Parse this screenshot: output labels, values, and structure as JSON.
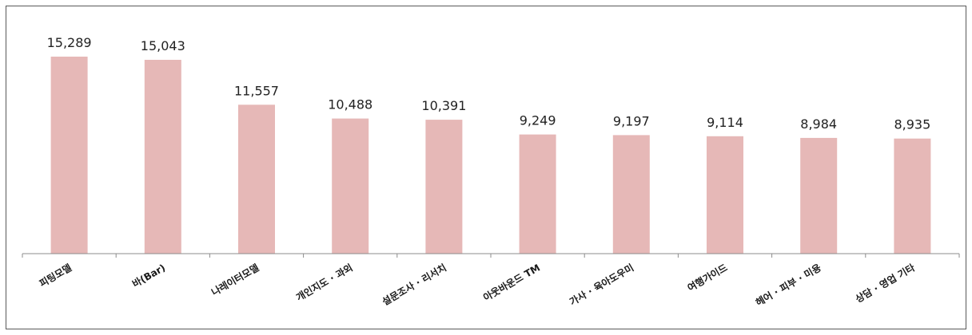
{
  "chart_data": {
    "type": "bar",
    "categories": [
      "피팅모델",
      "바(Bar)",
      "나레이터모델",
      "개인지도 · 과외",
      "설문조사 · 리서치",
      "아웃바운드 TM",
      "가사 · 육아도우미",
      "여행가이드",
      "헤어 · 피부 · 미용",
      "상담 · 영업 기타"
    ],
    "values": [
      15289,
      15043,
      11557,
      10488,
      10391,
      9249,
      9197,
      9114,
      8984,
      8935
    ],
    "value_labels": [
      "15,289",
      "15,043",
      "11,557",
      "10,488",
      "10,391",
      "9,249",
      "9,197",
      "9,114",
      "8,984",
      "8,935"
    ],
    "ylim": [
      0,
      18000
    ],
    "grid": false,
    "legend": "none",
    "title": "",
    "xlabel": "",
    "ylabel": "",
    "bar_color": "#e6b8b7",
    "axis_color": "#8c8c8c"
  }
}
